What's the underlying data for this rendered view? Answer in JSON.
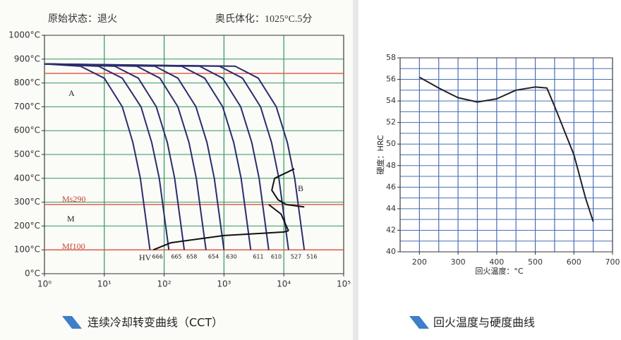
{
  "chart_data": [
    {
      "type": "line",
      "title": "连续冷却转变曲线（CCT）",
      "header": [
        "原始状态：退火",
        "奥氏体化：1025°C.5分"
      ],
      "xlog": true,
      "xlim": [
        1,
        100000
      ],
      "xticks": [
        {
          "value": 1,
          "label": "10⁰"
        },
        {
          "value": 10,
          "label": "10¹"
        },
        {
          "value": 100,
          "label": "10²"
        },
        {
          "value": 1000,
          "label": "10³"
        },
        {
          "value": 10000,
          "label": "10⁴"
        },
        {
          "value": 100000,
          "label": "10⁵"
        }
      ],
      "ylim": [
        0,
        1000
      ],
      "yticks": [
        {
          "value": 0,
          "label": "0°C"
        },
        {
          "value": 100,
          "label": "100°C"
        },
        {
          "value": 200,
          "label": "200°C"
        },
        {
          "value": 300,
          "label": "300°C"
        },
        {
          "value": 400,
          "label": "400°C"
        },
        {
          "value": 500,
          "label": "500°C"
        },
        {
          "value": 600,
          "label": "600°C"
        },
        {
          "value": 700,
          "label": "700°C"
        },
        {
          "value": 800,
          "label": "800°C"
        },
        {
          "value": 900,
          "label": "900°C"
        },
        {
          "value": 1000,
          "label": "1000°C"
        }
      ],
      "grid": true,
      "grid_color": "#2e9a5a",
      "reference_lines": {
        "color": "#e0533f",
        "values": [
          840,
          290,
          100
        ]
      },
      "annotations": [
        "A",
        "B",
        "M",
        "Ms290",
        "Mf100",
        "HV"
      ],
      "series": [
        {
          "color": "#2b2d6e",
          "x": [
            1,
            4,
            10,
            20,
            30,
            40,
            58
          ],
          "values": [
            880,
            870,
            820,
            700,
            550,
            400,
            100
          ],
          "hv": 666
        },
        {
          "color": "#2b2d6e",
          "x": [
            1,
            8,
            20,
            41,
            62,
            83,
            120
          ],
          "values": [
            880,
            870,
            820,
            700,
            550,
            400,
            100
          ],
          "hv": 665
        },
        {
          "color": "#2b2d6e",
          "x": [
            1,
            15,
            37,
            74,
            113,
            150,
            217
          ],
          "values": [
            880,
            870,
            820,
            700,
            550,
            400,
            100
          ],
          "hv": 658
        },
        {
          "color": "#2b2d6e",
          "x": [
            1,
            35,
            85,
            170,
            260,
            345,
            500
          ],
          "values": [
            880,
            870,
            820,
            700,
            550,
            400,
            100
          ],
          "hv": 654
        },
        {
          "color": "#2b2d6e",
          "x": [
            1,
            70,
            170,
            340,
            520,
            690,
            1000
          ],
          "values": [
            880,
            870,
            820,
            700,
            550,
            400,
            100
          ],
          "hv": 630
        },
        {
          "color": "#2b2d6e",
          "x": [
            1,
            196,
            476,
            952,
            1456,
            1932,
            2800
          ],
          "values": [
            880,
            870,
            820,
            700,
            550,
            400,
            100
          ],
          "hv": 611
        },
        {
          "color": "#2b2d6e",
          "x": [
            1,
            392,
            952,
            1904,
            2912,
            3864,
            5600
          ],
          "values": [
            880,
            870,
            820,
            700,
            550,
            400,
            100
          ],
          "hv": 610
        },
        {
          "color": "#2b2d6e",
          "x": [
            1,
            840,
            2040,
            4080,
            6240,
            8280,
            12000
          ],
          "values": [
            880,
            870,
            820,
            700,
            550,
            400,
            100
          ],
          "hv": 527
        },
        {
          "color": "#2b2d6e",
          "x": [
            1,
            1540,
            3740,
            7480,
            11440,
            15180,
            22000
          ],
          "values": [
            880,
            870,
            820,
            700,
            550,
            400,
            100
          ],
          "hv": 516
        },
        {
          "color": "#111111",
          "x": [
            15000,
            7000,
            6300,
            8000,
            11000,
            22000
          ],
          "values": [
            440,
            400,
            350,
            310,
            290,
            280
          ]
        },
        {
          "color": "#111111",
          "x": [
            5600,
            9000,
            11000,
            12000
          ],
          "values": [
            290,
            250,
            200,
            180
          ]
        },
        {
          "color": "#111111",
          "x": [
            66,
            130,
            1000,
            10000,
            12000
          ],
          "values": [
            100,
            130,
            160,
            175,
            180
          ]
        }
      ]
    },
    {
      "type": "line",
      "title": "回火温度与硬度曲线",
      "xlabel": "回火温度：°C",
      "ylabel": "硬度：HRC",
      "xlim": [
        150,
        700
      ],
      "xticks": [
        200,
        300,
        400,
        500,
        600,
        700
      ],
      "xgrid": [
        150,
        200,
        250,
        300,
        350,
        400,
        450,
        500,
        550,
        600,
        650,
        700
      ],
      "ylim": [
        40,
        58
      ],
      "yticks": [
        40,
        42,
        44,
        46,
        48,
        50,
        52,
        54,
        56,
        58
      ],
      "ygrid": [
        40,
        41,
        42,
        43,
        44,
        45,
        46,
        47,
        48,
        49,
        50,
        51,
        52,
        53,
        54,
        55,
        56,
        57,
        58
      ],
      "grid": true,
      "grid_color": "#4a6fb5",
      "series": [
        {
          "color": "#222222",
          "x": [
            200,
            250,
            300,
            350,
            400,
            450,
            500,
            530,
            550,
            600,
            630,
            650
          ],
          "values": [
            56.2,
            55.2,
            54.3,
            53.9,
            54.2,
            55,
            55.3,
            55.2,
            53.5,
            49,
            45,
            42.8
          ]
        }
      ]
    }
  ]
}
